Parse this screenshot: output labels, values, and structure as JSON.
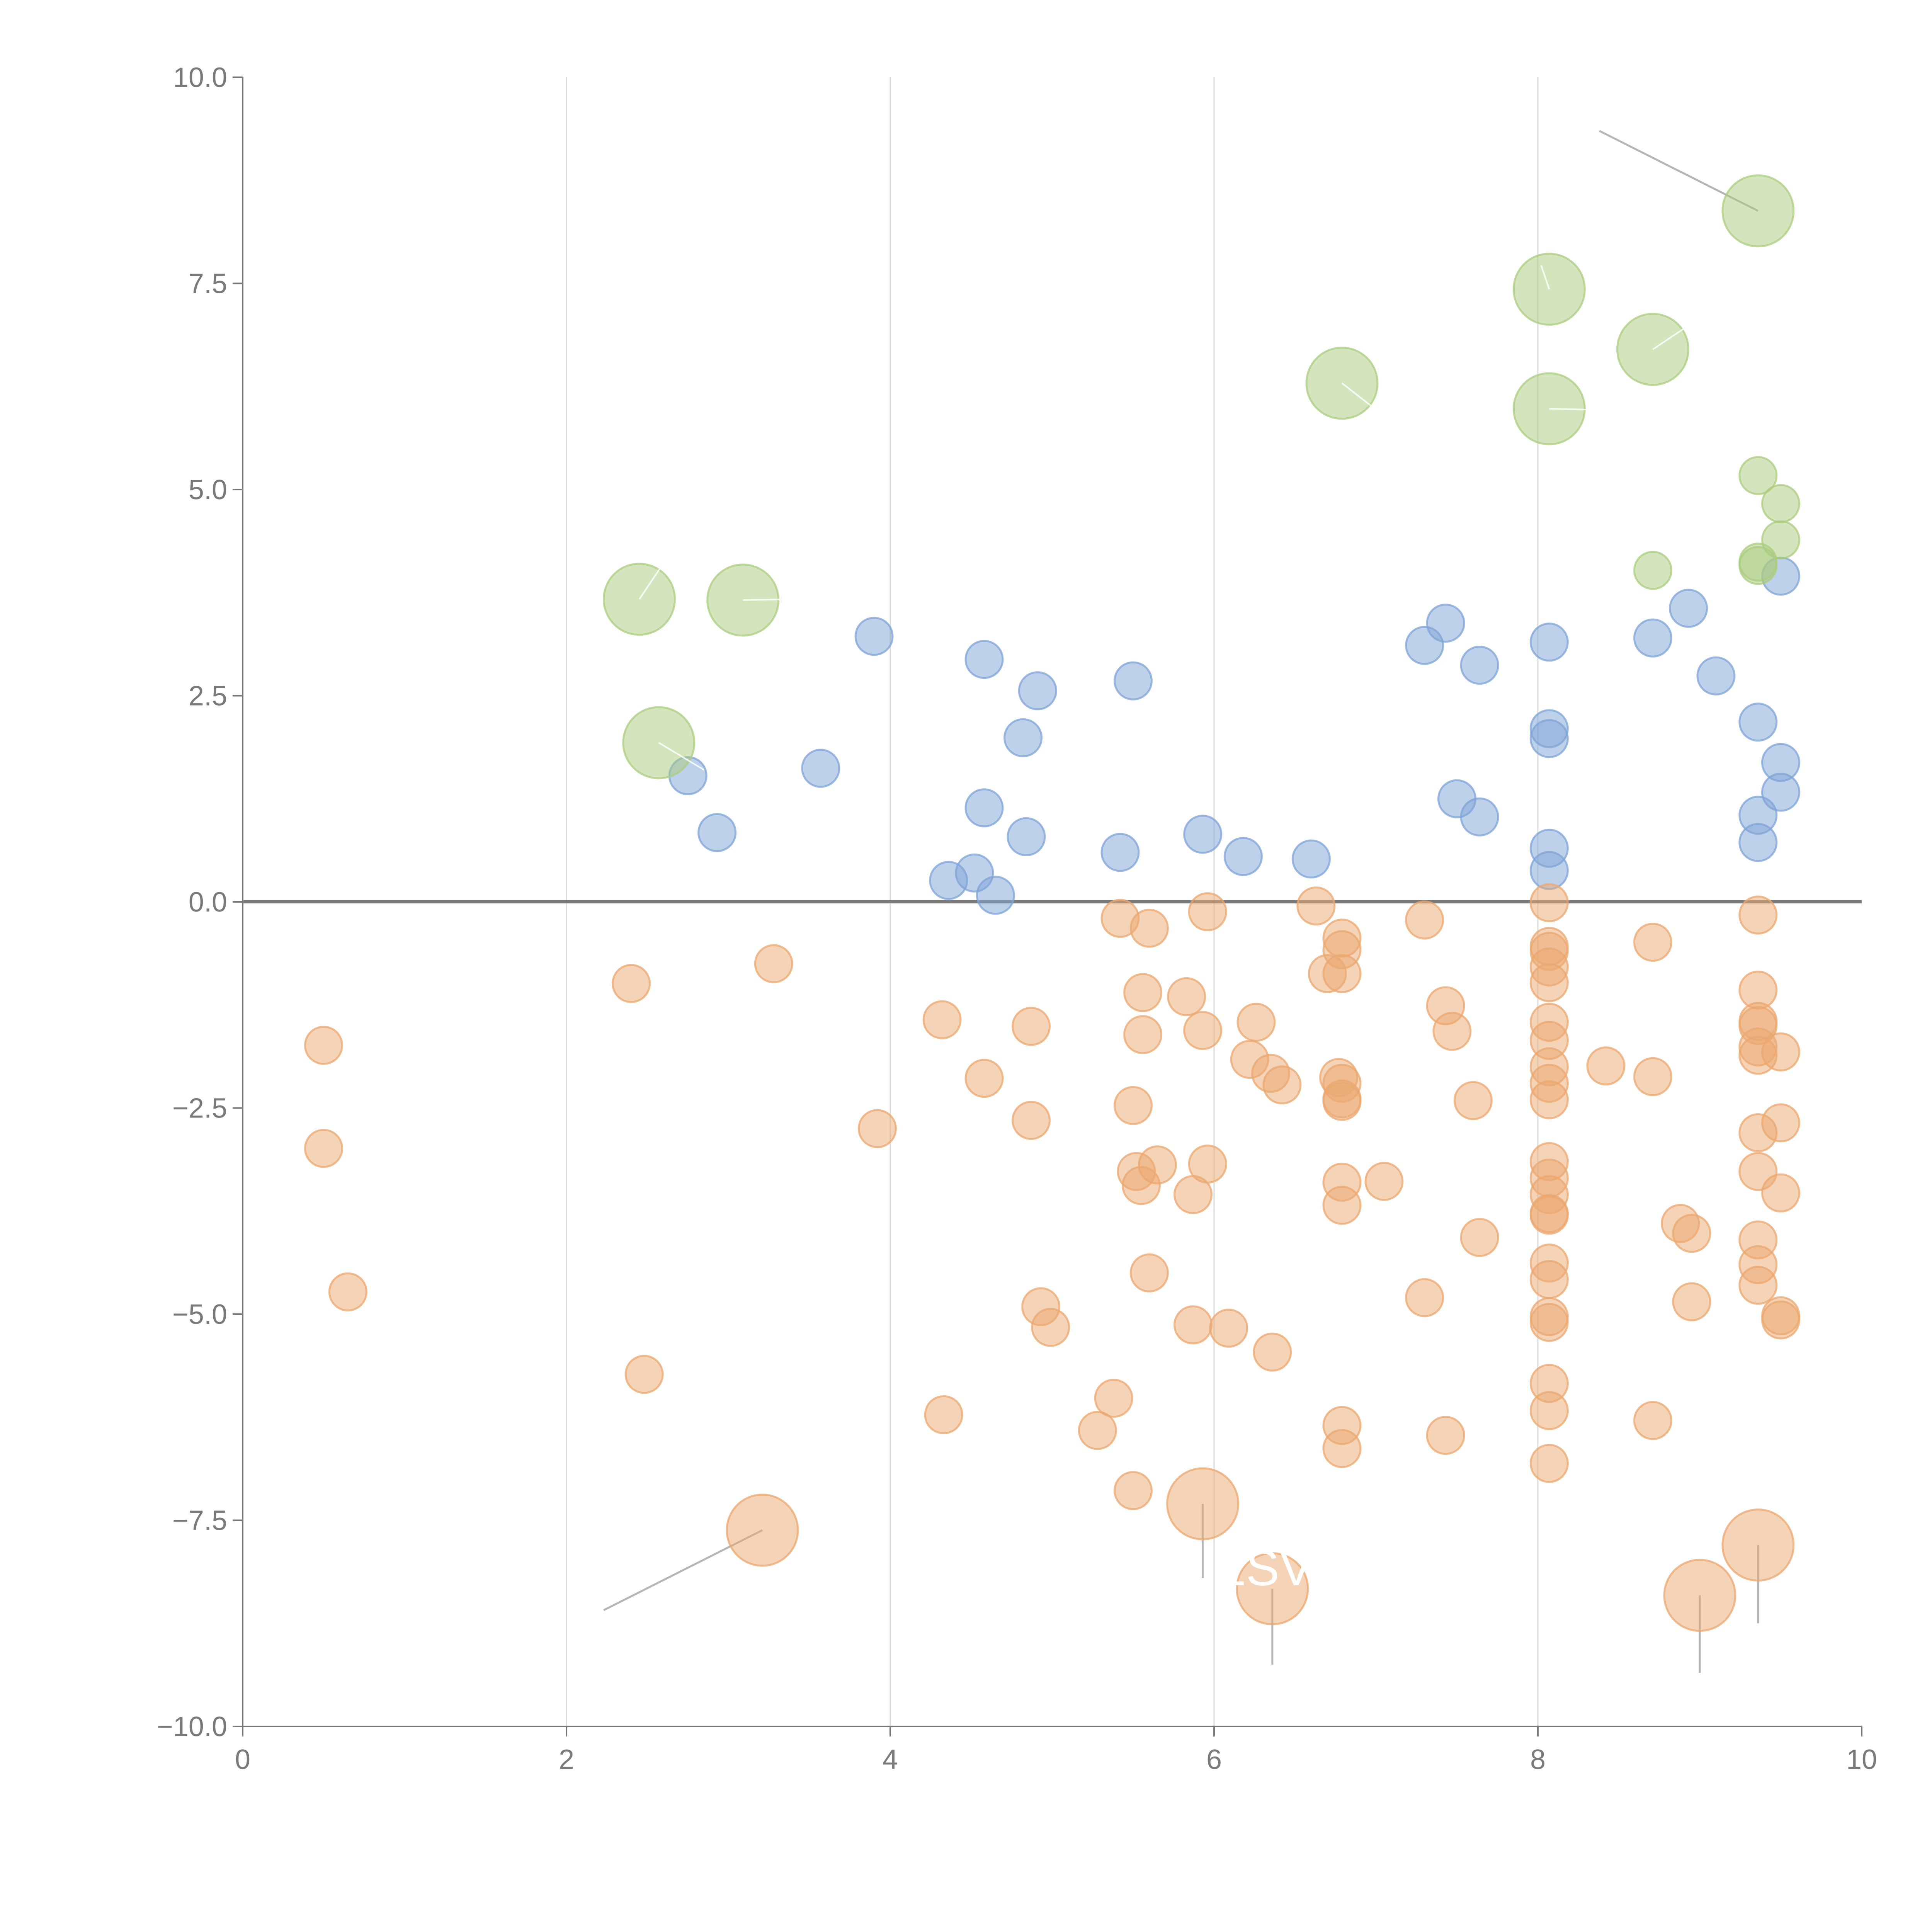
{
  "chart_data": {
    "type": "scatter",
    "title": "",
    "xlabel": "",
    "ylabel": "",
    "xlim": [
      0,
      10
    ],
    "ylim": [
      -10,
      10
    ],
    "x_ticks": [
      "0",
      "2",
      "4",
      "6",
      "8",
      "10"
    ],
    "y_ticks": [
      "10.0",
      "7.5",
      "5.0",
      "2.5",
      "0.0",
      "−2.5",
      "−5.0",
      "−7.5",
      "−10.0"
    ],
    "x_tick_values": [
      0,
      2,
      4,
      6,
      8,
      10
    ],
    "y_tick_values": [
      10,
      7.5,
      5,
      2.5,
      0,
      -2.5,
      -5,
      -7.5,
      -10
    ],
    "grid": "vertical",
    "zero_line": true,
    "colors": {
      "positive": "#7ea3d6",
      "negative": "#eba76f",
      "highlight": "#a9cc7e"
    },
    "annotations": [
      {
        "text": "ESV",
        "x": 6.3,
        "y": -8.1
      }
    ],
    "series": [
      {
        "name": "positive",
        "color": "#7ea3d6",
        "points": [
          {
            "x": 2.75,
            "y": 1.53
          },
          {
            "x": 2.93,
            "y": 0.84
          },
          {
            "x": 3.57,
            "y": 1.62
          },
          {
            "x": 3.9,
            "y": 3.22
          },
          {
            "x": 4.58,
            "y": 2.94
          },
          {
            "x": 4.58,
            "y": 1.14
          },
          {
            "x": 4.36,
            "y": 0.26
          },
          {
            "x": 4.52,
            "y": 0.35
          },
          {
            "x": 4.65,
            "y": 0.08
          },
          {
            "x": 4.82,
            "y": 1.99
          },
          {
            "x": 4.84,
            "y": 0.79
          },
          {
            "x": 4.91,
            "y": 2.56
          },
          {
            "x": 5.42,
            "y": 0.6
          },
          {
            "x": 5.5,
            "y": 2.68
          },
          {
            "x": 5.93,
            "y": 0.82
          },
          {
            "x": 6.18,
            "y": 0.55
          },
          {
            "x": 6.6,
            "y": 0.52
          },
          {
            "x": 7.3,
            "y": 3.11
          },
          {
            "x": 7.43,
            "y": 3.38
          },
          {
            "x": 7.5,
            "y": 1.25
          },
          {
            "x": 7.64,
            "y": 2.87
          },
          {
            "x": 7.64,
            "y": 1.03
          },
          {
            "x": 8.07,
            "y": 3.15
          },
          {
            "x": 8.07,
            "y": 2.1
          },
          {
            "x": 8.07,
            "y": 1.98
          },
          {
            "x": 8.07,
            "y": 0.65
          },
          {
            "x": 8.07,
            "y": 0.38
          },
          {
            "x": 8.71,
            "y": 3.2
          },
          {
            "x": 8.93,
            "y": 3.56
          },
          {
            "x": 9.1,
            "y": 2.74
          },
          {
            "x": 9.36,
            "y": 2.18
          },
          {
            "x": 9.36,
            "y": 1.05
          },
          {
            "x": 9.36,
            "y": 0.72
          },
          {
            "x": 9.5,
            "y": 3.95
          },
          {
            "x": 9.5,
            "y": 1.69
          },
          {
            "x": 9.5,
            "y": 1.33
          }
        ]
      },
      {
        "name": "negative",
        "color": "#eba76f",
        "points": [
          {
            "x": 0.5,
            "y": -1.74
          },
          {
            "x": 0.5,
            "y": -2.99
          },
          {
            "x": 0.65,
            "y": -4.73
          },
          {
            "x": 2.4,
            "y": -0.99
          },
          {
            "x": 2.48,
            "y": -5.73
          },
          {
            "x": 3.28,
            "y": -0.75
          },
          {
            "x": 3.92,
            "y": -2.75
          },
          {
            "x": 4.32,
            "y": -1.43
          },
          {
            "x": 4.33,
            "y": -6.22
          },
          {
            "x": 4.58,
            "y": -2.14
          },
          {
            "x": 4.87,
            "y": -1.51
          },
          {
            "x": 4.87,
            "y": -2.65
          },
          {
            "x": 4.93,
            "y": -4.91
          },
          {
            "x": 4.99,
            "y": -5.16
          },
          {
            "x": 5.28,
            "y": -6.41
          },
          {
            "x": 5.38,
            "y": -6.02
          },
          {
            "x": 5.42,
            "y": -0.2
          },
          {
            "x": 5.5,
            "y": -2.47
          },
          {
            "x": 5.5,
            "y": -7.14
          },
          {
            "x": 5.52,
            "y": -3.27
          },
          {
            "x": 5.55,
            "y": -3.44
          },
          {
            "x": 5.56,
            "y": -1.1
          },
          {
            "x": 5.56,
            "y": -1.61
          },
          {
            "x": 5.6,
            "y": -0.32
          },
          {
            "x": 5.6,
            "y": -4.5
          },
          {
            "x": 5.65,
            "y": -3.19
          },
          {
            "x": 5.83,
            "y": -1.15
          },
          {
            "x": 5.87,
            "y": -3.55
          },
          {
            "x": 5.87,
            "y": -5.13
          },
          {
            "x": 5.93,
            "y": -1.56
          },
          {
            "x": 5.96,
            "y": -0.12
          },
          {
            "x": 5.96,
            "y": -3.18
          },
          {
            "x": 6.09,
            "y": -5.17
          },
          {
            "x": 6.22,
            "y": -1.91
          },
          {
            "x": 6.26,
            "y": -1.46
          },
          {
            "x": 6.35,
            "y": -2.08
          },
          {
            "x": 6.36,
            "y": -5.46
          },
          {
            "x": 6.42,
            "y": -2.22
          },
          {
            "x": 6.63,
            "y": -0.05
          },
          {
            "x": 6.7,
            "y": -0.87
          },
          {
            "x": 6.77,
            "y": -2.13
          },
          {
            "x": 6.79,
            "y": -0.44
          },
          {
            "x": 6.79,
            "y": -0.58
          },
          {
            "x": 6.79,
            "y": -0.87
          },
          {
            "x": 6.79,
            "y": -2.2
          },
          {
            "x": 6.79,
            "y": -2.39
          },
          {
            "x": 6.79,
            "y": -2.42
          },
          {
            "x": 6.79,
            "y": -3.4
          },
          {
            "x": 6.79,
            "y": -3.68
          },
          {
            "x": 6.79,
            "y": -6.35
          },
          {
            "x": 6.79,
            "y": -6.63
          },
          {
            "x": 7.05,
            "y": -3.39
          },
          {
            "x": 7.3,
            "y": -0.22
          },
          {
            "x": 7.3,
            "y": -4.8
          },
          {
            "x": 7.43,
            "y": -1.26
          },
          {
            "x": 7.43,
            "y": -6.47
          },
          {
            "x": 7.47,
            "y": -1.57
          },
          {
            "x": 7.6,
            "y": -2.41
          },
          {
            "x": 7.64,
            "y": -4.07
          },
          {
            "x": 8.07,
            "y": -0.01
          },
          {
            "x": 8.07,
            "y": -0.54
          },
          {
            "x": 8.07,
            "y": -0.6
          },
          {
            "x": 8.07,
            "y": -0.79
          },
          {
            "x": 8.07,
            "y": -0.98
          },
          {
            "x": 8.07,
            "y": -1.46
          },
          {
            "x": 8.07,
            "y": -1.68
          },
          {
            "x": 8.07,
            "y": -2.0
          },
          {
            "x": 8.07,
            "y": -2.2
          },
          {
            "x": 8.07,
            "y": -2.4
          },
          {
            "x": 8.07,
            "y": -3.15
          },
          {
            "x": 8.07,
            "y": -3.35
          },
          {
            "x": 8.07,
            "y": -3.55
          },
          {
            "x": 8.07,
            "y": -3.78
          },
          {
            "x": 8.07,
            "y": -3.8
          },
          {
            "x": 8.07,
            "y": -4.38
          },
          {
            "x": 8.07,
            "y": -4.58
          },
          {
            "x": 8.07,
            "y": -5.03
          },
          {
            "x": 8.07,
            "y": -5.1
          },
          {
            "x": 8.07,
            "y": -5.84
          },
          {
            "x": 8.07,
            "y": -6.17
          },
          {
            "x": 8.07,
            "y": -6.81
          },
          {
            "x": 8.42,
            "y": -1.99
          },
          {
            "x": 8.71,
            "y": -0.49
          },
          {
            "x": 8.71,
            "y": -2.12
          },
          {
            "x": 8.71,
            "y": -6.29
          },
          {
            "x": 8.88,
            "y": -3.9
          },
          {
            "x": 8.95,
            "y": -4.02
          },
          {
            "x": 8.95,
            "y": -4.85
          },
          {
            "x": 9.36,
            "y": -0.16
          },
          {
            "x": 9.36,
            "y": -1.07
          },
          {
            "x": 9.36,
            "y": -1.45
          },
          {
            "x": 9.36,
            "y": -1.5
          },
          {
            "x": 9.36,
            "y": -1.76
          },
          {
            "x": 9.36,
            "y": -1.86
          },
          {
            "x": 9.36,
            "y": -2.8
          },
          {
            "x": 9.36,
            "y": -3.27
          },
          {
            "x": 9.36,
            "y": -4.1
          },
          {
            "x": 9.36,
            "y": -4.4
          },
          {
            "x": 9.36,
            "y": -4.65
          },
          {
            "x": 9.5,
            "y": -1.82
          },
          {
            "x": 9.5,
            "y": -2.68
          },
          {
            "x": 9.5,
            "y": -3.53
          },
          {
            "x": 9.5,
            "y": -5.02
          },
          {
            "x": 9.5,
            "y": -5.07
          }
        ]
      },
      {
        "name": "negative-large",
        "color": "#eba76f",
        "large": true,
        "points": [
          {
            "x": 3.21,
            "y": -7.62
          },
          {
            "x": 5.93,
            "y": -7.3
          },
          {
            "x": 6.36,
            "y": -8.33
          },
          {
            "x": 9.0,
            "y": -8.41
          },
          {
            "x": 9.36,
            "y": -7.8
          }
        ]
      },
      {
        "name": "highlight",
        "color": "#a9cc7e",
        "points": [
          {
            "x": 8.71,
            "y": 4.02
          },
          {
            "x": 9.36,
            "y": 5.17
          },
          {
            "x": 9.36,
            "y": 4.12
          },
          {
            "x": 9.36,
            "y": 4.08
          },
          {
            "x": 9.5,
            "y": 4.83
          },
          {
            "x": 9.5,
            "y": 4.39
          }
        ]
      },
      {
        "name": "highlight-large",
        "color": "#a9cc7e",
        "large": true,
        "points": [
          {
            "x": 2.45,
            "y": 3.67
          },
          {
            "x": 3.09,
            "y": 3.66
          },
          {
            "x": 2.57,
            "y": 1.93
          },
          {
            "x": 6.79,
            "y": 6.29
          },
          {
            "x": 8.07,
            "y": 7.43
          },
          {
            "x": 8.07,
            "y": 5.98
          },
          {
            "x": 8.71,
            "y": 6.7
          },
          {
            "x": 9.36,
            "y": 8.38
          }
        ]
      }
    ],
    "leaders": [
      {
        "from": [
          3.21,
          -7.62
        ],
        "to": [
          2.23,
          -8.59
        ],
        "color": "grey"
      },
      {
        "from": [
          5.93,
          -7.3
        ],
        "to": [
          5.93,
          -8.2
        ],
        "color": "grey"
      },
      {
        "from": [
          6.36,
          -8.33
        ],
        "to": [
          6.36,
          -9.25
        ],
        "color": "grey"
      },
      {
        "from": [
          9.0,
          -8.41
        ],
        "to": [
          9.0,
          -9.35
        ],
        "color": "grey"
      },
      {
        "from": [
          9.36,
          -7.8
        ],
        "to": [
          9.36,
          -8.75
        ],
        "color": "grey"
      },
      {
        "from": [
          9.36,
          8.38
        ],
        "to": [
          8.38,
          9.35
        ],
        "color": "grey"
      },
      {
        "from": [
          2.45,
          3.67
        ],
        "to": [
          2.58,
          4.05
        ],
        "color": "light"
      },
      {
        "from": [
          3.09,
          3.66
        ],
        "to": [
          3.4,
          3.67
        ],
        "color": "light"
      },
      {
        "from": [
          2.57,
          1.93
        ],
        "to": [
          2.85,
          1.6
        ],
        "color": "light"
      },
      {
        "from": [
          6.79,
          6.29
        ],
        "to": [
          6.98,
          6.0
        ],
        "color": "light"
      },
      {
        "from": [
          8.07,
          7.43
        ],
        "to": [
          8.02,
          7.72
        ],
        "color": "light"
      },
      {
        "from": [
          8.07,
          5.98
        ],
        "to": [
          8.3,
          5.97
        ],
        "color": "light"
      },
      {
        "from": [
          8.71,
          6.7
        ],
        "to": [
          8.9,
          6.95
        ],
        "color": "light"
      }
    ]
  }
}
